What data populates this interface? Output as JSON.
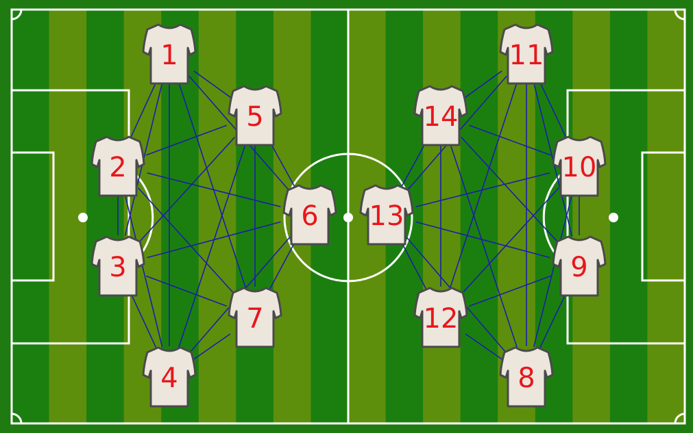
{
  "colors": {
    "border": "#1f7a12",
    "stripe_dark": "#1b7f10",
    "stripe_light": "#5e8f0c",
    "lines": "#ffffff",
    "shirt_fill": "#ece6dd",
    "shirt_stroke": "#4a4a4a",
    "number": "#e8161b",
    "edge": "#1a1fa8"
  },
  "players": [
    {
      "id": 1,
      "label": "1"
    },
    {
      "id": 2,
      "label": "2"
    },
    {
      "id": 3,
      "label": "3"
    },
    {
      "id": 4,
      "label": "4"
    },
    {
      "id": 5,
      "label": "5"
    },
    {
      "id": 6,
      "label": "6"
    },
    {
      "id": 7,
      "label": "7"
    },
    {
      "id": 8,
      "label": "8"
    },
    {
      "id": 9,
      "label": "9"
    },
    {
      "id": 10,
      "label": "10"
    },
    {
      "id": 11,
      "label": "11"
    },
    {
      "id": 12,
      "label": "12"
    },
    {
      "id": 13,
      "label": "13"
    },
    {
      "id": 14,
      "label": "14"
    }
  ],
  "edges": [
    [
      1,
      2
    ],
    [
      1,
      3
    ],
    [
      1,
      4
    ],
    [
      1,
      5
    ],
    [
      1,
      6
    ],
    [
      1,
      7
    ],
    [
      2,
      3
    ],
    [
      2,
      4
    ],
    [
      2,
      5
    ],
    [
      2,
      6
    ],
    [
      2,
      7
    ],
    [
      3,
      4
    ],
    [
      3,
      5
    ],
    [
      3,
      6
    ],
    [
      3,
      7
    ],
    [
      4,
      5
    ],
    [
      4,
      6
    ],
    [
      4,
      7
    ],
    [
      5,
      6
    ],
    [
      5,
      7
    ],
    [
      6,
      7
    ],
    [
      8,
      9
    ],
    [
      8,
      10
    ],
    [
      8,
      11
    ],
    [
      8,
      12
    ],
    [
      8,
      13
    ],
    [
      8,
      14
    ],
    [
      9,
      10
    ],
    [
      9,
      11
    ],
    [
      9,
      12
    ],
    [
      9,
      13
    ],
    [
      9,
      14
    ],
    [
      10,
      11
    ],
    [
      10,
      12
    ],
    [
      10,
      13
    ],
    [
      10,
      14
    ],
    [
      11,
      12
    ],
    [
      11,
      13
    ],
    [
      11,
      14
    ],
    [
      12,
      13
    ],
    [
      12,
      14
    ],
    [
      13,
      14
    ]
  ]
}
